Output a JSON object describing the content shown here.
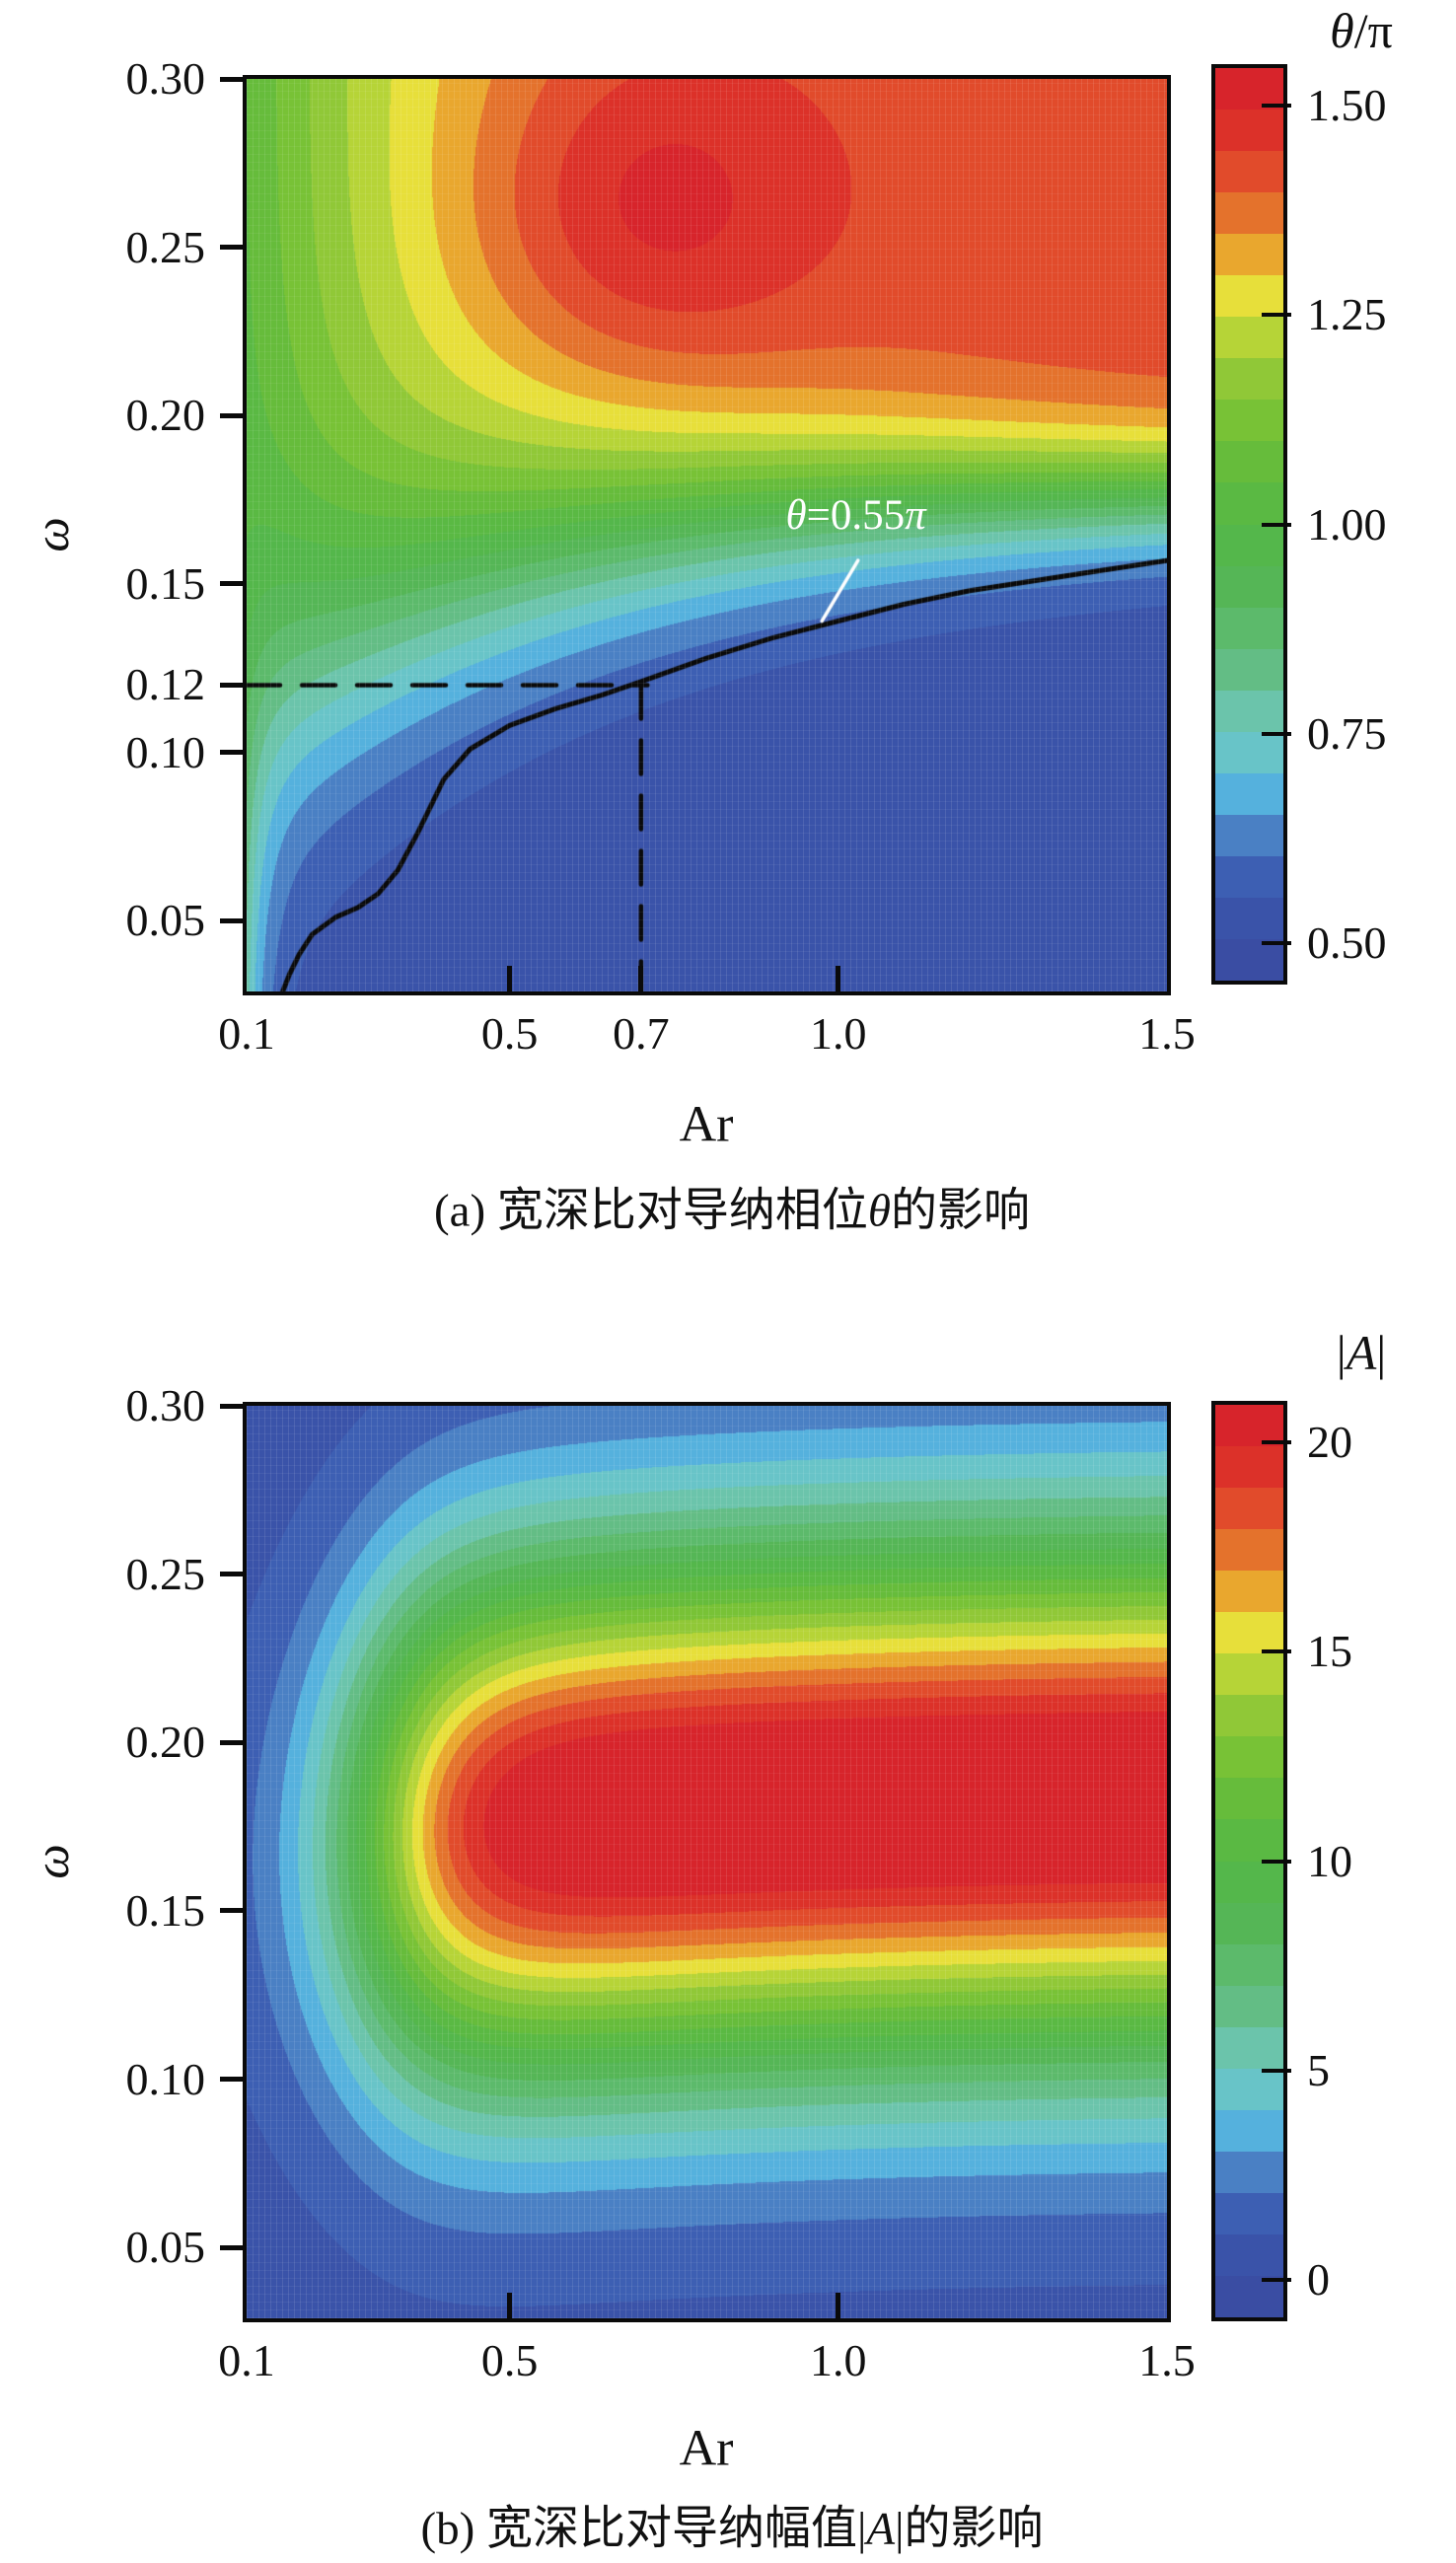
{
  "palette": [
    "#3a4da3",
    "#3a53a9",
    "#3d5fb3",
    "#4a80c4",
    "#55b1dd",
    "#68c4c8",
    "#6bc4ab",
    "#63bd85",
    "#5cba6b",
    "#55b656",
    "#54b74b",
    "#5ab943",
    "#66bc3b",
    "#78c236",
    "#90c837",
    "#b6d437",
    "#e7df3a",
    "#e9a72e",
    "#e4722c",
    "#e14b2b",
    "#dc3129",
    "#d7242b"
  ],
  "chart_data": [
    {
      "id": "a",
      "type": "heatmap",
      "caption": {
        "pre": "(a) 宽深比对导纳相位",
        "sym": "θ",
        "suf": "的影响"
      },
      "xlabel": "Ar",
      "ylabel": "ω",
      "xlim": [
        0.1,
        1.5
      ],
      "ylim": [
        0.029,
        0.3
      ],
      "x_ticks": [
        0.1,
        0.5,
        0.7,
        1.0,
        1.5
      ],
      "x_tick_labels": [
        "0.1",
        "0.5",
        "0.7",
        "1.0",
        "1.5"
      ],
      "y_ticks": [
        0.05,
        0.1,
        0.12,
        0.15,
        0.2,
        0.25,
        0.3
      ],
      "y_tick_labels": [
        "0.05",
        "0.10",
        "0.12",
        "0.15",
        "0.20",
        "0.25",
        "0.30"
      ],
      "colorbar": {
        "title": {
          "pre": "",
          "sym": "θ",
          "suf": "/π"
        },
        "range": [
          0.45,
          1.55
        ],
        "n_bands": 22,
        "ticks": [
          1.5,
          1.25,
          1.0,
          0.75,
          0.5
        ],
        "tick_labels": [
          "1.50",
          "1.25",
          "1.00",
          "0.75",
          "0.50"
        ]
      },
      "field_model": {
        "kind": "phase",
        "wc0": 0.178,
        "wcAmp": 0.09,
        "wcTau": 0.35,
        "w0": 0.008,
        "wAmp": 0.03,
        "wTau": 0.7,
        "x0": 0.1,
        "lo0": 0.5,
        "loAmp": 0.26,
        "loTau": 0.03,
        "hi0": 1.05,
        "hiAmp": 0.4,
        "hiTau": 0.33,
        "bumpA": 0.13,
        "bumpX": 0.7,
        "bumpSX": 0.18,
        "bumpW": 0.262,
        "bumpSW": 0.034
      },
      "contour": {
        "level": 0.55,
        "units": "π",
        "points": [
          [
            0.155,
            0.029
          ],
          [
            0.165,
            0.034
          ],
          [
            0.18,
            0.04
          ],
          [
            0.2,
            0.046
          ],
          [
            0.235,
            0.051
          ],
          [
            0.27,
            0.054
          ],
          [
            0.3,
            0.058
          ],
          [
            0.33,
            0.065
          ],
          [
            0.36,
            0.076
          ],
          [
            0.4,
            0.092
          ],
          [
            0.44,
            0.101
          ],
          [
            0.5,
            0.108
          ],
          [
            0.57,
            0.113
          ],
          [
            0.64,
            0.117
          ],
          [
            0.7,
            0.121
          ],
          [
            0.8,
            0.128
          ],
          [
            0.9,
            0.134
          ],
          [
            1.0,
            0.139
          ],
          [
            1.1,
            0.144
          ],
          [
            1.2,
            0.148
          ],
          [
            1.3,
            0.151
          ],
          [
            1.4,
            0.154
          ],
          [
            1.5,
            0.157
          ]
        ]
      },
      "guides": {
        "omega": 0.12,
        "ar": 0.7,
        "h_end_ar": 0.71
      },
      "annotation": {
        "parts": [
          "θ",
          "=0.55",
          "π"
        ],
        "color": "#ffffff",
        "anchor": [
          0.92,
          0.1775
        ],
        "pointer": [
          [
            1.03,
            0.157
          ],
          [
            0.975,
            0.139
          ]
        ]
      }
    },
    {
      "id": "b",
      "type": "heatmap",
      "caption": {
        "pre": "(b) 宽深比对导纳幅值|",
        "sym": "A",
        "suf": "|的影响"
      },
      "xlabel": "Ar",
      "ylabel": "ω",
      "xlim": [
        0.1,
        1.5
      ],
      "ylim": [
        0.029,
        0.3
      ],
      "x_ticks": [
        0.1,
        0.5,
        1.0,
        1.5
      ],
      "x_tick_labels": [
        "0.1",
        "0.5",
        "1.0",
        "1.5"
      ],
      "y_ticks": [
        0.05,
        0.1,
        0.15,
        0.2,
        0.25,
        0.3
      ],
      "y_tick_labels": [
        "0.05",
        "0.10",
        "0.15",
        "0.20",
        "0.25",
        "0.30"
      ],
      "colorbar": {
        "title": {
          "pre": "|",
          "sym": "A",
          "suf": "|"
        },
        "range": [
          -1,
          21
        ],
        "n_bands": 22,
        "ticks": [
          20,
          15,
          10,
          5,
          0
        ],
        "tick_labels": [
          "20",
          "15",
          "10",
          "5",
          "0"
        ]
      },
      "field_model": {
        "kind": "resonance",
        "base": 0.4,
        "amp": 21.9,
        "rx": 0.3,
        "rk": 0.075,
        "x0": 0.1,
        "c0": 0.165,
        "cAmp": 0.02,
        "cTau": 0.5,
        "s": 0.054
      },
      "contour": null,
      "guides": null,
      "annotation": null
    }
  ]
}
